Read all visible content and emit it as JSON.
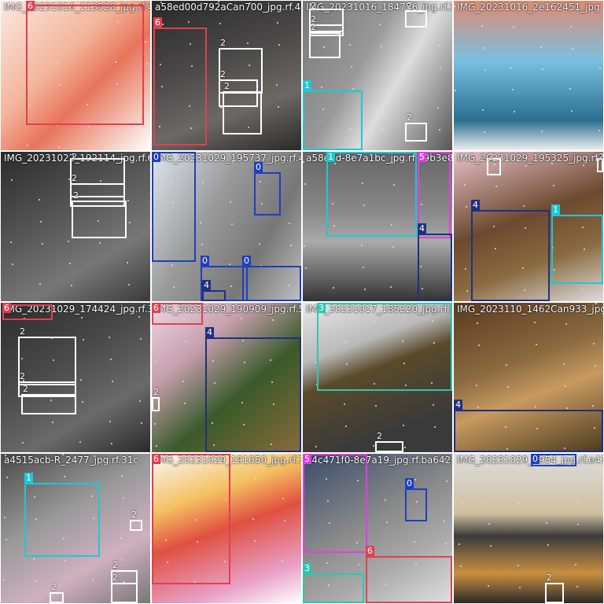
{
  "tiles": [
    {
      "filename": "IMG_20231016_113528_jpg.rf.4",
      "bg": "linear-gradient(135deg,#fbe9e4 0%,#f3b49a 40%,#e8745a 60%,#fff 100%)",
      "boxes": [
        {
          "cls": "6",
          "l": 32,
          "t": 5,
          "w": 150,
          "h": 153
        }
      ]
    },
    {
      "filename": "a58ed00d792aCan700_jpg.rf.4",
      "bg": "linear-gradient(160deg,#2a2a2a 0%,#4a4848 40%,#6c6866 70%,#2a2a2a 100%)",
      "boxes": [
        {
          "cls": "6",
          "l": 2,
          "t": 34,
          "w": 68,
          "h": 150
        },
        {
          "cls": "2",
          "l": 85,
          "t": 60,
          "w": 56,
          "h": 58
        },
        {
          "cls": "2",
          "l": 85,
          "t": 100,
          "w": 50,
          "h": 35
        },
        {
          "cls": "2",
          "l": 90,
          "t": 115,
          "w": 50,
          "h": 55
        }
      ]
    },
    {
      "filename": "IMG_20231016_184756_jpg.rf.3",
      "bg": "linear-gradient(120deg,#777 0%,#999 40%,#ddd 60%,#555 100%)",
      "boxes": [
        {
          "cls": "2",
          "l": 8,
          "t": 10,
          "w": 44,
          "h": 30
        },
        {
          "cls": "2",
          "l": 8,
          "t": 30,
          "w": 44,
          "h": 15
        },
        {
          "cls": "2",
          "l": 8,
          "t": 40,
          "w": 40,
          "h": 33
        },
        {
          "cls": "2",
          "l": 130,
          "t": 12,
          "w": 28,
          "h": 22
        },
        {
          "cls": "1",
          "l": 0,
          "t": 114,
          "w": 76,
          "h": 76
        },
        {
          "cls": "2",
          "l": 130,
          "t": 155,
          "w": 28,
          "h": 24
        }
      ]
    },
    {
      "filename": "IMG_20231016_2e162451_jpg",
      "bg": "linear-gradient(180deg,#e08a70 0%,#7ac0e0 40%,#2a6f8f 80%,#eee 100%)",
      "boxes": []
    },
    {
      "filename": "IMG_20231022_192114_jpg.rf.6",
      "bg": "linear-gradient(150deg,#2a2a2a 0%,#555 40%,#777 70%,#3a3a3a 100%)",
      "boxes": [
        {
          "cls": "2",
          "l": 88,
          "t": 8,
          "w": 70,
          "h": 50
        },
        {
          "cls": "2",
          "l": 88,
          "t": 40,
          "w": 70,
          "h": 30
        },
        {
          "cls": "2",
          "l": 90,
          "t": 62,
          "w": 70,
          "h": 48
        }
      ]
    },
    {
      "filename": "IMG_20231029_195737_jpg.rf.4",
      "bg": "linear-gradient(120deg,#dfe6ef 0%,#999 40%,#777 70%,#c0c0c0 100%)",
      "boxes": [
        {
          "cls": "0",
          "l": 0,
          "t": 0,
          "w": 56,
          "h": 140
        },
        {
          "cls": "0",
          "l": 130,
          "t": 26,
          "w": 34,
          "h": 55
        },
        {
          "cls": "0",
          "l": 62,
          "t": 145,
          "w": 60,
          "h": 45
        },
        {
          "cls": "0",
          "l": 115,
          "t": 145,
          "w": 75,
          "h": 45
        },
        {
          "cls": "4",
          "l": 64,
          "t": 176,
          "w": 30,
          "h": 14
        }
      ]
    },
    {
      "filename": "a58e2d-8e7a1bc_jpg.rf.79b3e8f",
      "bg": "linear-gradient(180deg,#666 0%,#888 40%,#aaa 60%,#333 100%)",
      "boxes": [
        {
          "cls": "1",
          "l": 30,
          "t": 0,
          "w": 115,
          "h": 108
        },
        {
          "cls": "5",
          "l": 146,
          "t": 0,
          "w": 42,
          "h": 110
        },
        {
          "cls": "4",
          "l": 146,
          "t": 104,
          "w": 44,
          "h": 86
        }
      ]
    },
    {
      "filename": "IMG_20231029_195325_jpg.rf.3",
      "bg": "linear-gradient(160deg,#e8c0c8 0%,#6b4a30 45%,#8a6a40 70%,#ddd 100%)",
      "boxes": [
        {
          "cls": "2",
          "l": 42,
          "t": 8,
          "w": 18,
          "h": 22
        },
        {
          "cls": "4",
          "l": 22,
          "t": 74,
          "w": 100,
          "h": 116
        },
        {
          "cls": "1",
          "l": 124,
          "t": 80,
          "w": 66,
          "h": 88
        },
        {
          "cls": "2",
          "l": 182,
          "t": 8,
          "w": 8,
          "h": 18
        }
      ]
    },
    {
      "filename": "IMG_20231029_174424_jpg.rf.3",
      "bg": "linear-gradient(150deg,#2c2c2c 0%,#4a4a4a 40%,#6a6a6a 70%,#2a2a2a 100%)",
      "boxes": [
        {
          "cls": "2",
          "l": 22,
          "t": 43,
          "w": 74,
          "h": 62
        },
        {
          "cls": "2",
          "l": 22,
          "t": 100,
          "w": 74,
          "h": 20
        },
        {
          "cls": "2",
          "l": 26,
          "t": 116,
          "w": 70,
          "h": 26
        },
        {
          "cls": "6",
          "l": 2,
          "t": 2,
          "w": 64,
          "h": 20
        }
      ]
    },
    {
      "filename": "IMG_20231029_190909_jpg.rf.57",
      "bg": "linear-gradient(140deg,#ead7df 0%,#c8a0b0 30%,#3a5a2a 60%,#8a6a3a 100%)",
      "boxes": [
        {
          "cls": "6",
          "l": 0,
          "t": 0,
          "w": 65,
          "h": 28
        },
        {
          "cls": "4",
          "l": 68,
          "t": 44,
          "w": 122,
          "h": 146
        },
        {
          "cls": "2",
          "l": 0,
          "t": 120,
          "w": 10,
          "h": 18
        }
      ]
    },
    {
      "filename": "IMG_20231017_185220_jpg.rf.be",
      "bg": "linear-gradient(160deg,#e9e9e9 0%,#b9b9b9 30%,#5a4a2a 45%,#3a3a3a 80%,#3a3a3a 100%)",
      "boxes": [
        {
          "cls": "3",
          "l": 18,
          "t": 0,
          "w": 172,
          "h": 112
        },
        {
          "cls": "2",
          "l": 92,
          "t": 176,
          "w": 36,
          "h": 14
        }
      ]
    },
    {
      "filename": "IMG_2023110_1462Can933_jpg.rf.9",
      "bg": "linear-gradient(160deg,#5a3a20 0%,#8a6a40 40%,#c89a60 60%,#4a3a20 100%)",
      "boxes": [
        {
          "cls": "4",
          "l": 0,
          "t": 136,
          "w": 190,
          "h": 54
        }
      ]
    },
    {
      "filename": "a4515acb-R_2477_jpg.rf.31c",
      "bg": "linear-gradient(150deg,#4a4a4a 0%,#999 40%,#d0b0c0 70%,#777 100%)",
      "boxes": [
        {
          "cls": "1",
          "l": 30,
          "t": 37,
          "w": 96,
          "h": 94
        },
        {
          "cls": "2",
          "l": 164,
          "t": 84,
          "w": 16,
          "h": 14
        },
        {
          "cls": "2",
          "l": 140,
          "t": 148,
          "w": 34,
          "h": 42
        },
        {
          "cls": "2",
          "l": 140,
          "t": 164,
          "w": 34,
          "h": 26
        },
        {
          "cls": "2",
          "l": 62,
          "t": 176,
          "w": 18,
          "h": 14
        }
      ]
    },
    {
      "filename": "IMG_20231029_191050_jpg.rf.7",
      "bg": "linear-gradient(160deg,#fafafa 0%,#f4c060 30%,#e05040 50%,#e8a0c8 80%,#fff 100%)",
      "boxes": [
        {
          "cls": "6",
          "l": 0,
          "t": 0,
          "w": 100,
          "h": 166
        }
      ]
    },
    {
      "filename": "a4c471f0-8e7a19_jpg.rf.ba642",
      "bg": "linear-gradient(150deg,#3a4a6a 0%,#8a8a8a 45%,#aaa 70%,#e0e0e0 100%)",
      "boxes": [
        {
          "cls": "5",
          "l": 0,
          "t": 0,
          "w": 82,
          "h": 126
        },
        {
          "cls": "0",
          "l": 130,
          "t": 44,
          "w": 28,
          "h": 42
        },
        {
          "cls": "6",
          "l": 80,
          "t": 130,
          "w": 110,
          "h": 60
        },
        {
          "cls": "3",
          "l": 0,
          "t": 152,
          "w": 78,
          "h": 38
        }
      ]
    },
    {
      "filename": "IMG_20231029_1954_jpg.rf.e415",
      "bg": "linear-gradient(180deg,#ddd 0%,#d0c0a0 40%,#3a3a3a 55%,#c89040 80%,#2a2a2a 100%)",
      "boxes": [
        {
          "cls": "0",
          "l": 98,
          "t": 0,
          "w": 58,
          "h": 16
        },
        {
          "cls": "2",
          "l": 116,
          "t": 164,
          "w": 24,
          "h": 26
        }
      ]
    }
  ]
}
